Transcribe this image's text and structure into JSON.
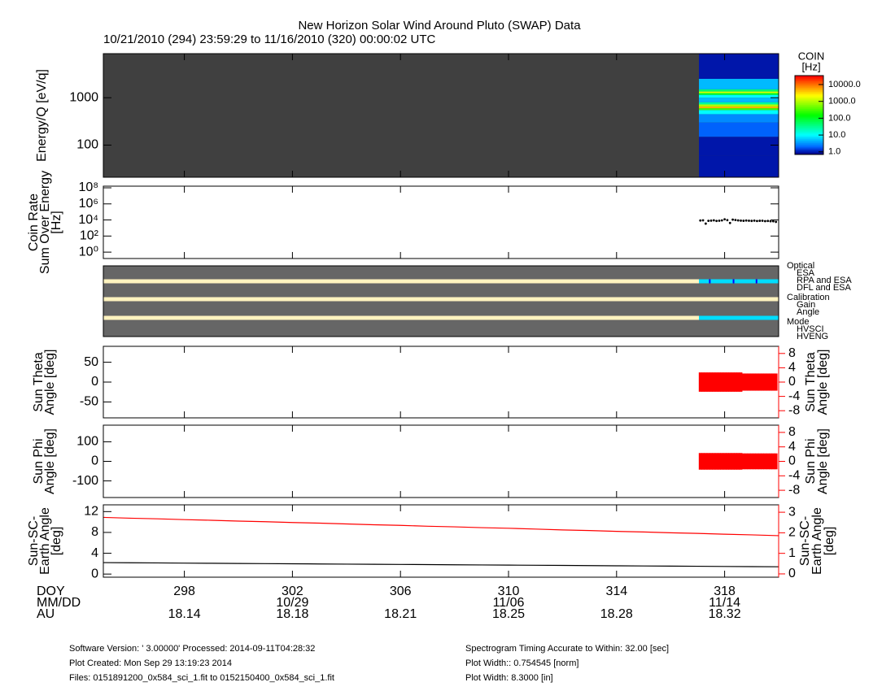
{
  "title": "New Horizon Solar Wind Around Pluto (SWAP) Data",
  "subtitle": "10/21/2010 (294) 23:59:29 to 11/16/2010 (320) 00:00:02 UTC",
  "x_axis": {
    "labels": [
      "DOY",
      "MM/DD",
      "AU"
    ],
    "xlim": [
      295,
      320
    ],
    "xticks": [
      298,
      302,
      306,
      310,
      314,
      318
    ],
    "mmdd": [
      null,
      "10/29",
      null,
      "11/06",
      null,
      "11/14"
    ],
    "au": [
      18.14,
      18.18,
      18.21,
      18.25,
      18.28,
      18.32
    ]
  },
  "chart_data": [
    {
      "type": "spectrogram",
      "ylabel": [
        "Energy/Q [eV/q]"
      ],
      "ylog": true,
      "ylim": [
        21,
        8500
      ],
      "yticks": [
        100,
        1000
      ],
      "background": "#404040",
      "x": [
        317.05,
        320
      ],
      "energy_bins": [
        21,
        60,
        150,
        300,
        450,
        550,
        600,
        650,
        720,
        800,
        1000,
        1150,
        1250,
        1350,
        1500,
        2500,
        8500
      ],
      "rates": [
        1,
        1,
        2,
        3,
        10,
        300,
        5000,
        1000,
        30,
        5,
        10,
        100,
        1500,
        50,
        5,
        1
      ],
      "colorbar": {
        "title": [
          "COIN",
          "[Hz]"
        ],
        "zlim": [
          0.7,
          34000
        ],
        "zticks": [
          {
            "value": 1,
            "label": "1.0"
          },
          {
            "value": 10,
            "label": "10.0"
          },
          {
            "value": 100,
            "label": "100.0"
          },
          {
            "value": 1000,
            "label": "1000.0"
          },
          {
            "value": 10000,
            "label": "10000.0"
          }
        ]
      }
    },
    {
      "type": "scatter",
      "ylabel": [
        "Coin Rate",
        "Sum Over Energy",
        "[Hz]"
      ],
      "ylog": true,
      "ylim": [
        0.16,
        160000000
      ],
      "background": "#ffffff",
      "color": "#000000",
      "yticks": [
        {
          "value": 1,
          "label": "10⁰"
        },
        {
          "value": 100,
          "label": "10²"
        },
        {
          "value": 10000,
          "label": "10⁴"
        },
        {
          "value": 1000000,
          "label": "10⁶"
        },
        {
          "value": 100000000,
          "label": "10⁸"
        }
      ],
      "x": [
        317.1,
        317.2,
        317.3,
        317.4,
        317.5,
        317.6,
        317.7,
        317.8,
        317.9,
        318.0,
        318.1,
        318.2,
        318.3,
        318.4,
        318.5,
        318.6,
        318.7,
        318.8,
        318.9,
        319.0,
        319.1,
        319.2,
        319.3,
        319.4,
        319.5,
        319.6,
        319.7,
        319.8,
        319.9
      ],
      "values": [
        8500,
        9000,
        3500,
        7800,
        8200,
        9100,
        7600,
        8000,
        8800,
        12000,
        9500,
        4200,
        11000,
        9800,
        8700,
        8200,
        7900,
        8500,
        8100,
        7700,
        8300,
        7400,
        7900,
        8000,
        7200,
        7600,
        7000,
        6900,
        5800
      ]
    },
    {
      "type": "status",
      "background": "#666666",
      "baseline_color": "#fff3bf",
      "rows": [
        {
          "name": "Optical",
          "states": [
            {
              "name": "ESA",
              "color": "#00ddff"
            },
            {
              "name": "RPA and ESA",
              "color": "#ff0000"
            },
            {
              "name": "DFL and ESA",
              "color": "#0000ff"
            }
          ],
          "segments": [
            {
              "state": "ESA",
              "x": [
                317.05,
                320
              ]
            },
            {
              "state": "DFL and ESA",
              "x": [
                317.42,
                317.48
              ]
            },
            {
              "state": "DFL and ESA",
              "x": [
                318.3,
                318.36
              ]
            },
            {
              "state": "DFL and ESA",
              "x": [
                319.15,
                319.21
              ]
            }
          ]
        },
        {
          "name": "Calibration",
          "states": [
            {
              "name": "Gain",
              "color": "#ff0000"
            },
            {
              "name": "Angle",
              "color": "#00ddff"
            }
          ],
          "segments": []
        },
        {
          "name": "Mode",
          "states": [
            {
              "name": "HVSCI",
              "color": "#00ddff"
            },
            {
              "name": "HVENG",
              "color": "#ff0000"
            }
          ],
          "segments": [
            {
              "state": "HVSCI",
              "x": [
                317.05,
                320
              ]
            }
          ]
        }
      ]
    },
    {
      "type": "range",
      "ylabel": [
        "Sun Theta",
        "Angle [deg]"
      ],
      "y2label": [
        "Sun Theta",
        "Angle [deg]"
      ],
      "background": "#ffffff",
      "ylim": [
        -90,
        90
      ],
      "yticks": [
        -50,
        0,
        50
      ],
      "y2lim": [
        -10,
        10
      ],
      "y2ticks": [
        -8,
        -4,
        0,
        4,
        8
      ],
      "y2color": "#ff0000",
      "series": [
        {
          "color": "#ff0000",
          "axis": "y2",
          "x": [
            317.1,
            317.2,
            317.3,
            317.4,
            317.5,
            317.6,
            317.7,
            317.8,
            317.9,
            318.0,
            318.1,
            318.2,
            318.3,
            318.4,
            318.5,
            318.6,
            318.7,
            318.8,
            318.9,
            319.0,
            319.1,
            319.2,
            319.3,
            319.4,
            319.5,
            319.6,
            319.7,
            319.8,
            319.9
          ],
          "min": [
            -2.7,
            -2.7,
            -2.7,
            -2.7,
            -2.7,
            -2.7,
            -2.7,
            -2.7,
            -2.7,
            -2.7,
            -2.7,
            -2.7,
            -2.7,
            -2.7,
            -2.7,
            -2.7,
            -2.4,
            -2.4,
            -2.4,
            -2.4,
            -2.4,
            -2.4,
            -2.4,
            -2.4,
            -2.4,
            -2.4,
            -2.4,
            -2.4,
            -2.4
          ],
          "max": [
            2.7,
            2.7,
            2.7,
            2.7,
            2.7,
            2.7,
            2.7,
            2.7,
            2.7,
            2.7,
            2.7,
            2.7,
            2.7,
            2.7,
            2.7,
            2.7,
            2.4,
            2.4,
            2.4,
            2.4,
            2.4,
            2.4,
            2.4,
            2.4,
            2.4,
            2.4,
            2.4,
            2.4,
            2.4
          ]
        }
      ]
    },
    {
      "type": "range",
      "ylabel": [
        "Sun Phi",
        "Angle [deg]"
      ],
      "y2label": [
        "Sun Phi",
        "Angle [deg]"
      ],
      "background": "#ffffff",
      "ylim": [
        -185,
        185
      ],
      "yticks": [
        -100,
        0,
        100
      ],
      "y2lim": [
        -10,
        10
      ],
      "y2ticks": [
        -8,
        -4,
        0,
        4,
        8
      ],
      "y2color": "#ff0000",
      "series": [
        {
          "color": "#ff0000",
          "axis": "y2",
          "x": [
            317.1,
            317.2,
            317.3,
            317.4,
            317.5,
            317.6,
            317.7,
            317.8,
            317.9,
            318.0,
            318.1,
            318.2,
            318.3,
            318.4,
            318.5,
            318.6,
            318.7,
            318.8,
            318.9,
            319.0,
            319.1,
            319.2,
            319.3,
            319.4,
            319.5,
            319.6,
            319.7,
            319.8,
            319.9
          ],
          "min": [
            -2.3,
            -2.3,
            -2.3,
            -2.3,
            -2.3,
            -2.3,
            -2.3,
            -2.3,
            -2.3,
            -2.3,
            -2.3,
            -2.3,
            -2.3,
            -2.3,
            -2.3,
            -2.3,
            -2.2,
            -2.2,
            -2.2,
            -2.2,
            -2.2,
            -2.2,
            -2.2,
            -2.2,
            -2.2,
            -2.2,
            -2.2,
            -2.2,
            -2.2
          ],
          "max": [
            2.3,
            2.3,
            2.3,
            2.3,
            2.3,
            2.3,
            2.3,
            2.3,
            2.3,
            2.3,
            2.3,
            2.3,
            2.3,
            2.3,
            2.3,
            2.3,
            2.2,
            2.2,
            2.2,
            2.2,
            2.2,
            2.2,
            2.2,
            2.2,
            2.2,
            2.2,
            2.2,
            2.2,
            2.2
          ]
        }
      ]
    },
    {
      "type": "line",
      "ylabel": [
        "Sun-SC-",
        "Earth Angle",
        "[deg]"
      ],
      "y2label": [
        "Sun-SC-",
        "Earth Angle",
        "[deg]"
      ],
      "background": "#ffffff",
      "ylim": [
        -0.6,
        13.3
      ],
      "yticks": [
        0,
        4,
        8,
        12
      ],
      "y2lim": [
        -0.16,
        3.36
      ],
      "y2ticks": [
        0,
        1,
        2,
        3
      ],
      "y2color": "#ff0000",
      "x": [
        295,
        296,
        297,
        298,
        299,
        300,
        301,
        302,
        303,
        304,
        305,
        306,
        307,
        308,
        309,
        310,
        311,
        312,
        313,
        314,
        315,
        316,
        317,
        318,
        319,
        320
      ],
      "series": [
        {
          "color": "#000000",
          "axis": "y",
          "values": [
            2.2,
            2.17,
            2.14,
            2.1,
            2.07,
            2.04,
            2.01,
            1.98,
            1.94,
            1.91,
            1.88,
            1.85,
            1.82,
            1.78,
            1.75,
            1.72,
            1.69,
            1.66,
            1.62,
            1.59,
            1.56,
            1.53,
            1.5,
            1.46,
            1.43,
            1.4
          ]
        },
        {
          "color": "#ff0000",
          "axis": "y2",
          "values": [
            2.75,
            2.71,
            2.68,
            2.64,
            2.61,
            2.57,
            2.54,
            2.5,
            2.47,
            2.43,
            2.39,
            2.36,
            2.32,
            2.29,
            2.25,
            2.22,
            2.18,
            2.14,
            2.11,
            2.07,
            2.04,
            2.0,
            1.97,
            1.93,
            1.9,
            1.86
          ]
        }
      ]
    }
  ],
  "footer": {
    "left": [
      "Software Version:  ' 3.00000'  Processed: 2014-09-11T04:28:32",
      "Plot Created: Mon Sep 29 13:19:23 2014",
      "Files: 0151891200_0x584_sci_1.fit to 0152150400_0x584_sci_1.fit"
    ],
    "right": [
      "Spectrogram Timing Accurate to Within: 32.00 [sec]",
      "Plot Width:: 0.754545 [norm]",
      "Plot Width: 8.3000 [in]"
    ]
  }
}
